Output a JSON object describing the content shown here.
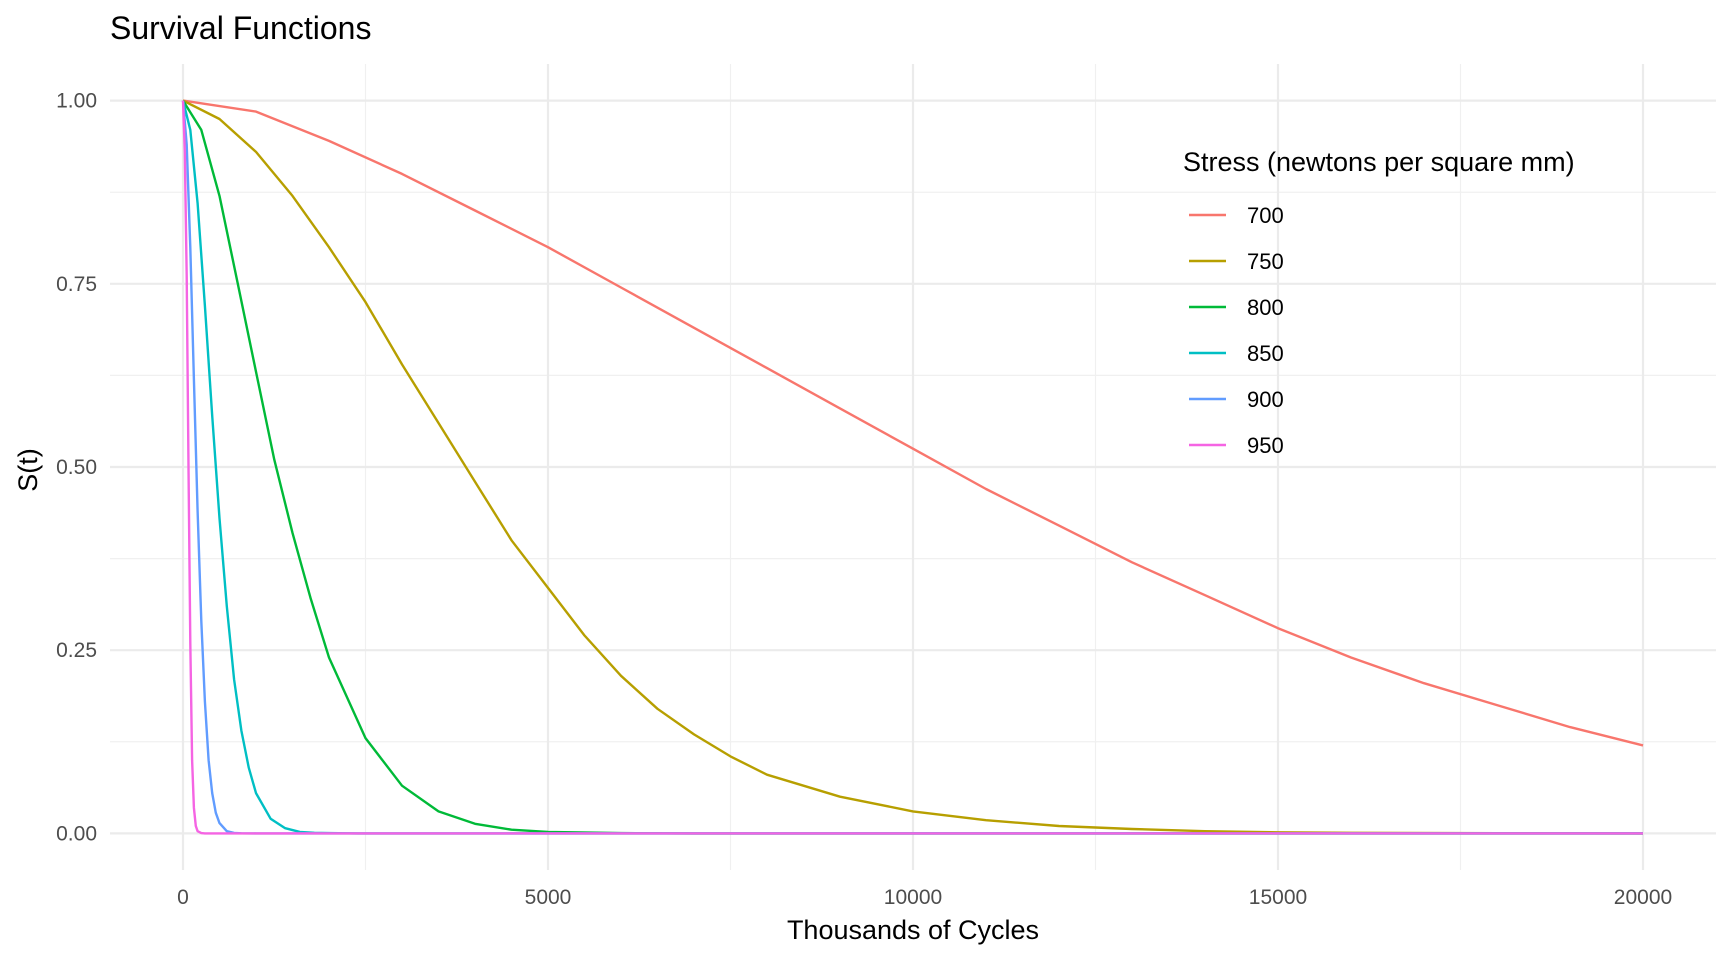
{
  "chart_data": {
    "type": "line",
    "title": "Survival Functions",
    "xlabel": "Thousands of Cycles",
    "ylabel": "S(t)",
    "xlim": [
      -1000,
      21000
    ],
    "ylim": [
      -0.05,
      1.05
    ],
    "xticks": [
      0,
      5000,
      10000,
      15000,
      20000
    ],
    "xtick_labels": [
      "0",
      "5000",
      "10000",
      "15000",
      "20000"
    ],
    "yticks": [
      0,
      0.25,
      0.5,
      0.75,
      1
    ],
    "ytick_labels": [
      "0.00",
      "0.25",
      "0.50",
      "0.75",
      "1.00"
    ],
    "grid": true,
    "legend": {
      "title": "Stress (newtons per square mm)",
      "position": "top-right"
    },
    "series": [
      {
        "name": "700",
        "color": "#F8766D",
        "x": [
          0,
          1000,
          2000,
          3000,
          4000,
          5000,
          6000,
          7000,
          8000,
          9000,
          10000,
          11000,
          12000,
          13000,
          14000,
          15000,
          16000,
          17000,
          18000,
          19000,
          20000
        ],
        "y": [
          1.0,
          0.985,
          0.945,
          0.9,
          0.85,
          0.8,
          0.745,
          0.69,
          0.635,
          0.58,
          0.525,
          0.47,
          0.42,
          0.37,
          0.325,
          0.28,
          0.24,
          0.205,
          0.175,
          0.145,
          0.12
        ]
      },
      {
        "name": "750",
        "color": "#B79F00",
        "x": [
          0,
          500,
          1000,
          1500,
          2000,
          2500,
          3000,
          3500,
          4000,
          4500,
          5000,
          5500,
          6000,
          6500,
          7000,
          7500,
          8000,
          9000,
          10000,
          11000,
          12000,
          13000,
          14000,
          15000,
          16000,
          18000,
          20000
        ],
        "y": [
          1.0,
          0.975,
          0.93,
          0.87,
          0.8,
          0.725,
          0.64,
          0.56,
          0.48,
          0.4,
          0.335,
          0.27,
          0.215,
          0.17,
          0.135,
          0.105,
          0.08,
          0.05,
          0.03,
          0.018,
          0.01,
          0.006,
          0.003,
          0.0015,
          0.0008,
          0.0002,
          0.0
        ]
      },
      {
        "name": "800",
        "color": "#00BA38",
        "x": [
          0,
          250,
          500,
          750,
          1000,
          1250,
          1500,
          1750,
          2000,
          2500,
          3000,
          3500,
          4000,
          4500,
          5000,
          6000,
          7000,
          8000,
          10000,
          20000
        ],
        "y": [
          1.0,
          0.96,
          0.87,
          0.75,
          0.63,
          0.51,
          0.41,
          0.32,
          0.24,
          0.13,
          0.065,
          0.03,
          0.013,
          0.005,
          0.002,
          0.0003,
          0.0,
          0.0,
          0.0,
          0.0
        ]
      },
      {
        "name": "850",
        "color": "#00BFC4",
        "x": [
          0,
          100,
          200,
          300,
          400,
          500,
          600,
          700,
          800,
          900,
          1000,
          1200,
          1400,
          1600,
          1800,
          2000,
          2400,
          3000,
          20000
        ],
        "y": [
          1.0,
          0.96,
          0.86,
          0.72,
          0.57,
          0.43,
          0.31,
          0.21,
          0.14,
          0.09,
          0.055,
          0.02,
          0.007,
          0.002,
          0.0008,
          0.0003,
          0.0,
          0.0,
          0.0
        ]
      },
      {
        "name": "900",
        "color": "#619CFF",
        "x": [
          0,
          50,
          100,
          150,
          200,
          250,
          300,
          350,
          400,
          450,
          500,
          600,
          700,
          800,
          1000,
          1200,
          20000
        ],
        "y": [
          1.0,
          0.94,
          0.8,
          0.62,
          0.44,
          0.29,
          0.18,
          0.1,
          0.055,
          0.028,
          0.014,
          0.003,
          0.0007,
          0.0001,
          0.0,
          0.0,
          0.0
        ]
      },
      {
        "name": "950",
        "color": "#F564E3",
        "x": [
          0,
          25,
          50,
          75,
          100,
          125,
          150,
          175,
          200,
          250,
          300,
          400,
          20000
        ],
        "y": [
          1.0,
          0.93,
          0.76,
          0.5,
          0.26,
          0.1,
          0.035,
          0.01,
          0.003,
          0.0003,
          0.0,
          0.0,
          0.0
        ]
      }
    ]
  }
}
